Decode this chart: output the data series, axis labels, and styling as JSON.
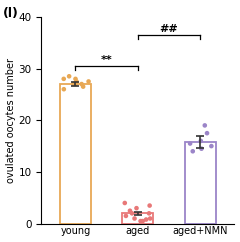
{
  "title_label": "(l)",
  "ylabel": "ovulated oocytes number",
  "groups": [
    "young",
    "aged",
    "aged+NMN"
  ],
  "bar_means": [
    27.0,
    2.0,
    15.8
  ],
  "bar_sems": [
    0.35,
    0.35,
    1.1
  ],
  "bar_edge_colors": [
    "#E8A855",
    "#E87878",
    "#9B85C8"
  ],
  "bar_fill_colors": [
    "#FAE0BE",
    "#FAC8C8",
    "#DDD5F0"
  ],
  "scatter_data": [
    [
      26.0,
      26.5,
      27.0,
      27.0,
      27.5,
      27.5,
      28.0,
      28.0,
      28.5,
      27.0
    ],
    [
      0.5,
      0.8,
      1.0,
      1.5,
      2.0,
      2.0,
      2.5,
      3.0,
      3.5,
      4.0,
      0.5,
      1.0
    ],
    [
      14.0,
      14.5,
      15.0,
      15.5,
      16.0,
      17.5,
      19.0
    ]
  ],
  "scatter_colors": [
    "#E8A855",
    "#E87878",
    "#9B85C8"
  ],
  "ylim": [
    0,
    40
  ],
  "yticks": [
    0,
    10,
    20,
    30,
    40
  ],
  "significance_young_aged": "**",
  "significance_aged_NMN": "##",
  "bar_width": 0.5,
  "x_positions": [
    0,
    1,
    2
  ]
}
